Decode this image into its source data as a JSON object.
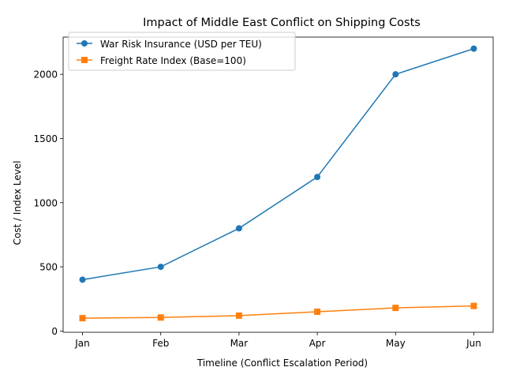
{
  "chart_data": {
    "type": "line",
    "title": "Impact of Middle East Conflict on Shipping Costs",
    "xlabel": "Timeline (Conflict Escalation Period)",
    "ylabel": "Cost / Index Level",
    "categories": [
      "Jan",
      "Feb",
      "Mar",
      "Apr",
      "May",
      "Jun"
    ],
    "ylim": [
      -10,
      2290
    ],
    "yticks": [
      0,
      500,
      1000,
      1500,
      2000
    ],
    "grid": false,
    "legend_position": "top-left",
    "series": [
      {
        "name": "War Risk Insurance (USD per TEU)",
        "values": [
          400,
          500,
          800,
          1200,
          2000,
          2200
        ],
        "color": "#1f77b4",
        "marker": "circle"
      },
      {
        "name": "Freight Rate Index (Base=100)",
        "values": [
          100,
          105,
          120,
          150,
          180,
          195
        ],
        "color": "#ff7f0e",
        "marker": "square"
      }
    ]
  }
}
